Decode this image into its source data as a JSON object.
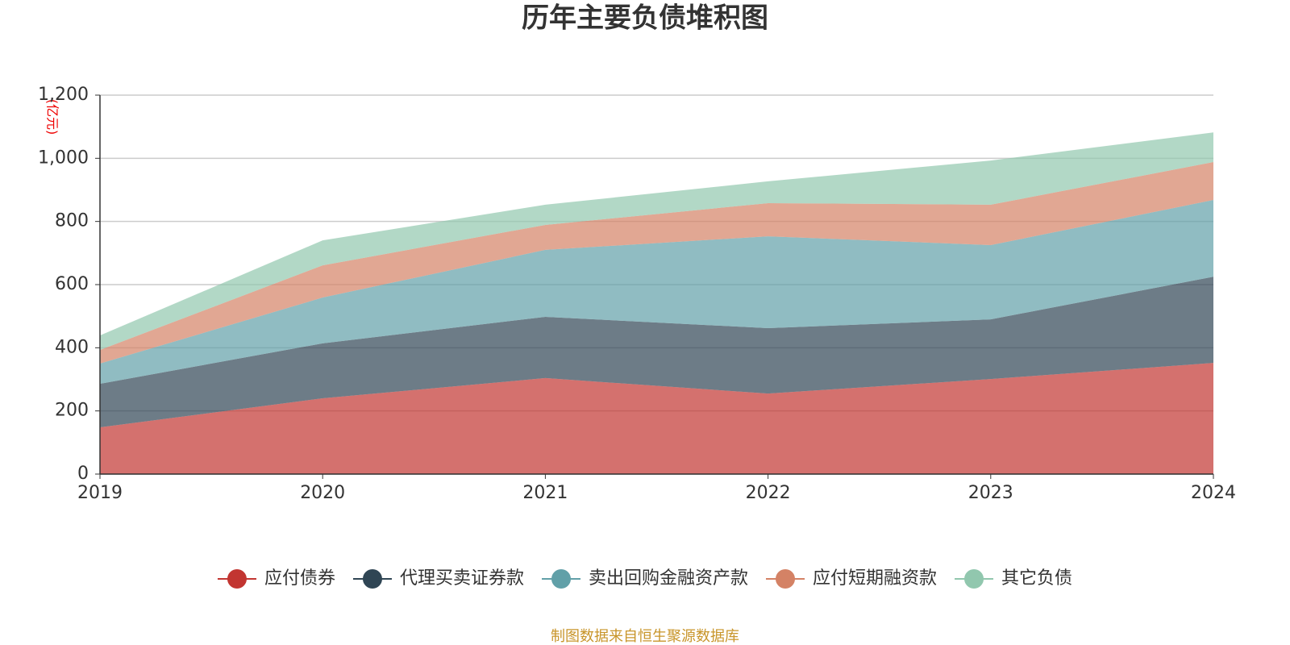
{
  "chart_data": {
    "type": "stacked-area",
    "title": "历年主要负债堆积图",
    "y_label": "(亿元)",
    "source": "制图数据来自恒生聚源数据库",
    "categories": [
      "2019",
      "2020",
      "2021",
      "2022",
      "2023",
      "2024"
    ],
    "series": [
      {
        "name": "应付债券",
        "color": "#c23531",
        "values": [
          148,
          240,
          304,
          255,
          301,
          352
        ]
      },
      {
        "name": "代理买卖证券款",
        "color": "#2f4554",
        "values": [
          138,
          174,
          194,
          207,
          189,
          273
        ]
      },
      {
        "name": "卖出回购金融资产款",
        "color": "#61a0a8",
        "values": [
          64,
          145,
          212,
          291,
          235,
          243
        ]
      },
      {
        "name": "应付短期融资款",
        "color": "#d48265",
        "values": [
          43,
          102,
          79,
          105,
          128,
          120
        ]
      },
      {
        "name": "其它负债",
        "color": "#91c7ae",
        "values": [
          46,
          79,
          64,
          69,
          140,
          94
        ]
      }
    ],
    "ylim": [
      0,
      1200
    ],
    "yticks": [
      0,
      200,
      400,
      600,
      800,
      {
        "value": 1000,
        "label": "1,000"
      },
      {
        "value": 1200,
        "label": "1,200"
      }
    ],
    "grid": true
  }
}
